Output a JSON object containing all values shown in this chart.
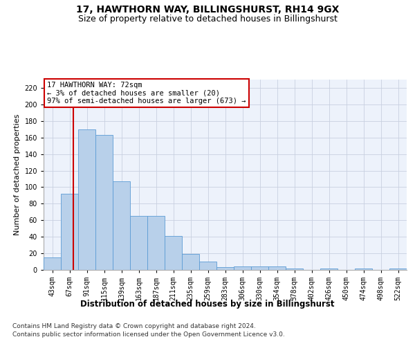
{
  "title1": "17, HAWTHORN WAY, BILLINGSHURST, RH14 9GX",
  "title2": "Size of property relative to detached houses in Billingshurst",
  "xlabel": "Distribution of detached houses by size in Billingshurst",
  "ylabel": "Number of detached properties",
  "categories": [
    "43sqm",
    "67sqm",
    "91sqm",
    "115sqm",
    "139sqm",
    "163sqm",
    "187sqm",
    "211sqm",
    "235sqm",
    "259sqm",
    "283sqm",
    "306sqm",
    "330sqm",
    "354sqm",
    "378sqm",
    "402sqm",
    "426sqm",
    "450sqm",
    "474sqm",
    "498sqm",
    "522sqm"
  ],
  "values": [
    15,
    92,
    170,
    163,
    107,
    65,
    65,
    41,
    19,
    10,
    3,
    4,
    4,
    4,
    2,
    0,
    2,
    0,
    2,
    0,
    2
  ],
  "bar_color": "#b8d0ea",
  "bar_edge_color": "#5b9bd5",
  "annotation_text": "17 HAWTHORN WAY: 72sqm\n← 3% of detached houses are smaller (20)\n97% of semi-detached houses are larger (673) →",
  "annotation_box_color": "#ffffff",
  "annotation_box_edge": "#cc0000",
  "vline_color": "#cc0000",
  "ylim": [
    0,
    230
  ],
  "yticks": [
    0,
    20,
    40,
    60,
    80,
    100,
    120,
    140,
    160,
    180,
    200,
    220
  ],
  "footer1": "Contains HM Land Registry data © Crown copyright and database right 2024.",
  "footer2": "Contains public sector information licensed under the Open Government Licence v3.0.",
  "bg_color": "#edf2fb",
  "grid_color": "#c8d0e0",
  "title1_fontsize": 10,
  "title2_fontsize": 9,
  "xlabel_fontsize": 8.5,
  "ylabel_fontsize": 8,
  "tick_fontsize": 7,
  "footer_fontsize": 6.5,
  "ann_fontsize": 7.5
}
